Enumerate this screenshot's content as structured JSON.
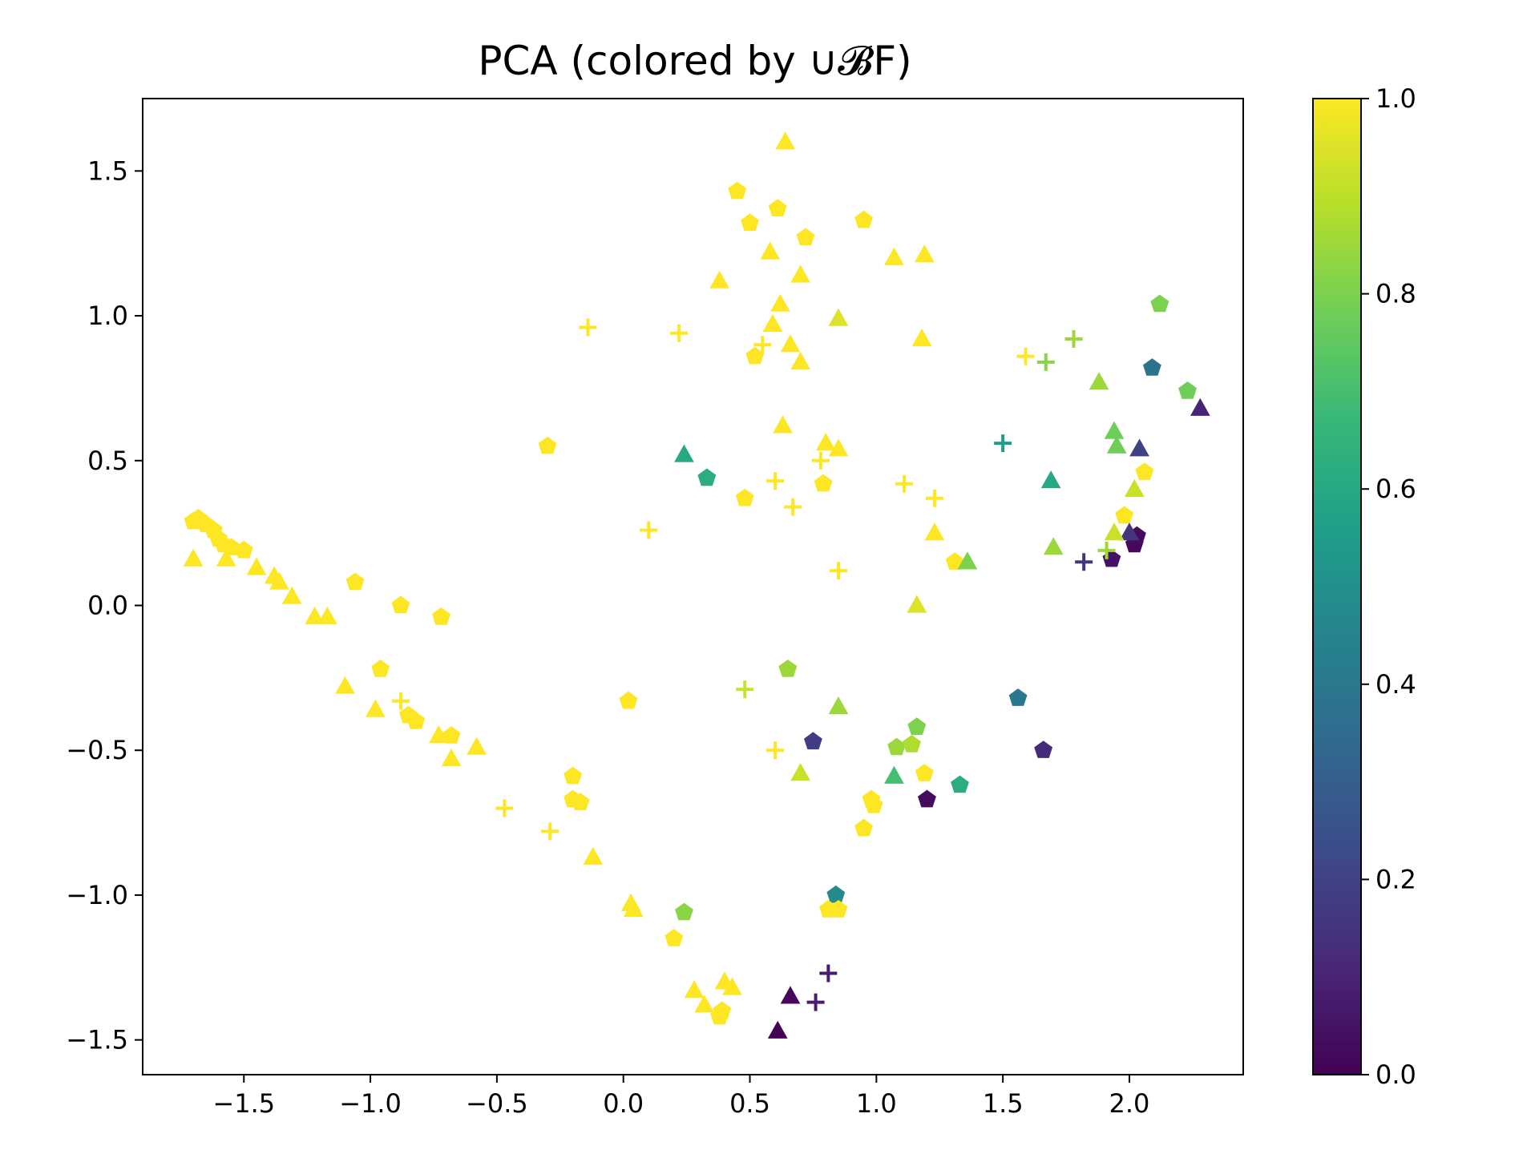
{
  "chart_data": {
    "type": "scatter",
    "title": "PCA (colored by ∪𝓑F)",
    "xlabel": "",
    "ylabel": "",
    "xlim": [
      -1.9,
      2.45
    ],
    "ylim": [
      -1.62,
      1.75
    ],
    "xticks": [
      -1.5,
      -1.0,
      -0.5,
      0.0,
      0.5,
      1.0,
      1.5,
      2.0
    ],
    "xtick_labels": [
      "−1.5",
      "−1.0",
      "−0.5",
      "0.0",
      "0.5",
      "1.0",
      "1.5",
      "2.0"
    ],
    "yticks": [
      -1.5,
      -1.0,
      -0.5,
      0.0,
      0.5,
      1.0,
      1.5
    ],
    "ytick_labels": [
      "−1.5",
      "−1.0",
      "−0.5",
      "0.0",
      "0.5",
      "1.0",
      "1.5"
    ],
    "grid": false,
    "legend": "none",
    "colormap": "viridis",
    "colorbar": {
      "range": [
        0.0,
        1.0
      ],
      "ticks": [
        0.0,
        0.2,
        0.4,
        0.6,
        0.8,
        1.0
      ],
      "tick_labels": [
        "0.0",
        "0.2",
        "0.4",
        "0.6",
        "0.8",
        "1.0"
      ],
      "stops": [
        "#440154",
        "#482878",
        "#3e4989",
        "#31688e",
        "#26828e",
        "#1f9e89",
        "#35b779",
        "#6ece58",
        "#b5de2b",
        "#fde725"
      ]
    },
    "series": [
      {
        "marker": "pentagon",
        "points": [
          [
            -1.7,
            0.29,
            1.0
          ],
          [
            -1.68,
            0.3,
            1.0
          ],
          [
            -1.65,
            0.28,
            1.0
          ],
          [
            -1.62,
            0.26,
            1.0
          ],
          [
            -1.6,
            0.23,
            1.0
          ],
          [
            -1.58,
            0.21,
            1.0
          ],
          [
            -1.55,
            0.2,
            1.0
          ],
          [
            -1.5,
            0.19,
            1.0
          ],
          [
            -1.06,
            0.08,
            1.0
          ],
          [
            -0.88,
            0.0,
            1.0
          ],
          [
            -0.72,
            -0.04,
            1.0
          ],
          [
            -0.96,
            -0.22,
            1.0
          ],
          [
            -0.85,
            -0.38,
            1.0
          ],
          [
            -0.82,
            -0.4,
            1.0
          ],
          [
            -0.68,
            -0.45,
            1.0
          ],
          [
            -0.2,
            -0.59,
            1.0
          ],
          [
            -0.2,
            -0.67,
            1.0
          ],
          [
            -0.17,
            -0.68,
            1.0
          ],
          [
            0.02,
            -0.33,
            1.0
          ],
          [
            0.2,
            -1.15,
            1.0
          ],
          [
            0.38,
            -1.42,
            1.0
          ],
          [
            0.39,
            -1.4,
            1.0
          ],
          [
            -0.3,
            0.55,
            1.0
          ],
          [
            0.45,
            1.43,
            1.0
          ],
          [
            0.5,
            1.32,
            1.0
          ],
          [
            0.61,
            1.37,
            1.0
          ],
          [
            0.72,
            1.27,
            1.0
          ],
          [
            0.95,
            1.33,
            1.0
          ],
          [
            0.52,
            0.86,
            1.0
          ],
          [
            0.48,
            0.37,
            1.0
          ],
          [
            0.79,
            0.42,
            1.0
          ],
          [
            0.33,
            0.44,
            0.62
          ],
          [
            0.65,
            -0.22,
            0.85
          ],
          [
            0.75,
            -0.47,
            0.18
          ],
          [
            0.84,
            -1.0,
            0.48
          ],
          [
            0.81,
            -1.05,
            1.0
          ],
          [
            0.85,
            -1.05,
            1.0
          ],
          [
            0.95,
            -0.77,
            1.0
          ],
          [
            0.98,
            -0.67,
            1.0
          ],
          [
            0.99,
            -0.69,
            1.0
          ],
          [
            1.08,
            -0.49,
            0.85
          ],
          [
            1.14,
            -0.48,
            0.88
          ],
          [
            1.16,
            -0.42,
            0.8
          ],
          [
            1.19,
            -0.58,
            1.0
          ],
          [
            1.2,
            -0.67,
            0.03
          ],
          [
            1.33,
            -0.62,
            0.62
          ],
          [
            1.31,
            0.15,
            1.0
          ],
          [
            1.56,
            -0.32,
            0.4
          ],
          [
            1.66,
            -0.5,
            0.12
          ],
          [
            0.24,
            -1.06,
            0.82
          ],
          [
            1.93,
            0.16,
            0.05
          ],
          [
            2.02,
            0.21,
            0.02
          ],
          [
            2.03,
            0.24,
            0.03
          ],
          [
            2.09,
            0.82,
            0.38
          ],
          [
            2.12,
            1.04,
            0.8
          ],
          [
            2.23,
            0.74,
            0.78
          ],
          [
            1.98,
            0.31,
            1.0
          ],
          [
            2.06,
            0.46,
            1.0
          ]
        ]
      },
      {
        "marker": "triangle",
        "points": [
          [
            -1.7,
            0.16,
            1.0
          ],
          [
            -1.57,
            0.16,
            1.0
          ],
          [
            -1.45,
            0.13,
            1.0
          ],
          [
            -1.38,
            0.1,
            1.0
          ],
          [
            -1.36,
            0.08,
            1.0
          ],
          [
            -1.31,
            0.03,
            1.0
          ],
          [
            -1.22,
            -0.04,
            1.0
          ],
          [
            -1.17,
            -0.04,
            1.0
          ],
          [
            -1.1,
            -0.28,
            1.0
          ],
          [
            -0.98,
            -0.36,
            1.0
          ],
          [
            -0.73,
            -0.45,
            1.0
          ],
          [
            -0.68,
            -0.53,
            1.0
          ],
          [
            -0.58,
            -0.49,
            1.0
          ],
          [
            -0.12,
            -0.87,
            1.0
          ],
          [
            0.03,
            -1.03,
            1.0
          ],
          [
            0.04,
            -1.05,
            1.0
          ],
          [
            0.28,
            -1.33,
            1.0
          ],
          [
            0.32,
            -1.38,
            1.0
          ],
          [
            0.4,
            -1.3,
            1.0
          ],
          [
            0.43,
            -1.32,
            1.0
          ],
          [
            0.64,
            1.6,
            1.0
          ],
          [
            0.58,
            1.22,
            1.0
          ],
          [
            0.38,
            1.12,
            1.0
          ],
          [
            0.7,
            1.14,
            1.0
          ],
          [
            1.07,
            1.2,
            1.0
          ],
          [
            1.19,
            1.21,
            1.0
          ],
          [
            0.62,
            1.04,
            1.0
          ],
          [
            0.59,
            0.97,
            1.0
          ],
          [
            0.66,
            0.9,
            1.0
          ],
          [
            0.7,
            0.84,
            1.0
          ],
          [
            0.85,
            0.99,
            0.95
          ],
          [
            1.18,
            0.92,
            1.0
          ],
          [
            0.63,
            0.62,
            1.0
          ],
          [
            0.8,
            0.56,
            1.0
          ],
          [
            0.85,
            0.54,
            1.0
          ],
          [
            0.24,
            0.52,
            0.6
          ],
          [
            1.23,
            0.25,
            1.0
          ],
          [
            1.16,
            0.0,
            0.95
          ],
          [
            1.36,
            0.15,
            0.8
          ],
          [
            1.69,
            0.43,
            0.6
          ],
          [
            1.7,
            0.2,
            0.85
          ],
          [
            1.88,
            0.77,
            0.85
          ],
          [
            1.94,
            0.6,
            0.78
          ],
          [
            1.95,
            0.55,
            0.78
          ],
          [
            2.04,
            0.54,
            0.2
          ],
          [
            2.02,
            0.4,
            0.92
          ],
          [
            2.0,
            0.25,
            0.15
          ],
          [
            1.94,
            0.25,
            0.92
          ],
          [
            2.28,
            0.68,
            0.1
          ],
          [
            0.85,
            -0.35,
            0.85
          ],
          [
            0.7,
            -0.58,
            0.92
          ],
          [
            1.07,
            -0.59,
            0.7
          ],
          [
            0.66,
            -1.35,
            0.02
          ],
          [
            0.61,
            -1.47,
            0.0
          ]
        ]
      },
      {
        "marker": "plus",
        "points": [
          [
            -0.14,
            0.96,
            1.0
          ],
          [
            0.22,
            0.94,
            1.0
          ],
          [
            0.55,
            0.9,
            1.0
          ],
          [
            0.6,
            0.43,
            1.0
          ],
          [
            0.67,
            0.34,
            1.0
          ],
          [
            0.78,
            0.5,
            1.0
          ],
          [
            0.1,
            0.26,
            1.0
          ],
          [
            0.85,
            0.12,
            1.0
          ],
          [
            1.11,
            0.42,
            1.0
          ],
          [
            1.23,
            0.37,
            1.0
          ],
          [
            1.59,
            0.86,
            1.0
          ],
          [
            1.67,
            0.84,
            0.82
          ],
          [
            1.78,
            0.92,
            0.85
          ],
          [
            1.5,
            0.56,
            0.55
          ],
          [
            1.82,
            0.15,
            0.15
          ],
          [
            1.91,
            0.19,
            0.85
          ],
          [
            0.48,
            -0.29,
            0.92
          ],
          [
            0.6,
            -0.5,
            1.0
          ],
          [
            -0.88,
            -0.33,
            1.0
          ],
          [
            -0.47,
            -0.7,
            1.0
          ],
          [
            -0.29,
            -0.78,
            1.0
          ],
          [
            0.81,
            -1.27,
            0.08
          ],
          [
            0.76,
            -1.37,
            0.08
          ]
        ]
      }
    ]
  }
}
